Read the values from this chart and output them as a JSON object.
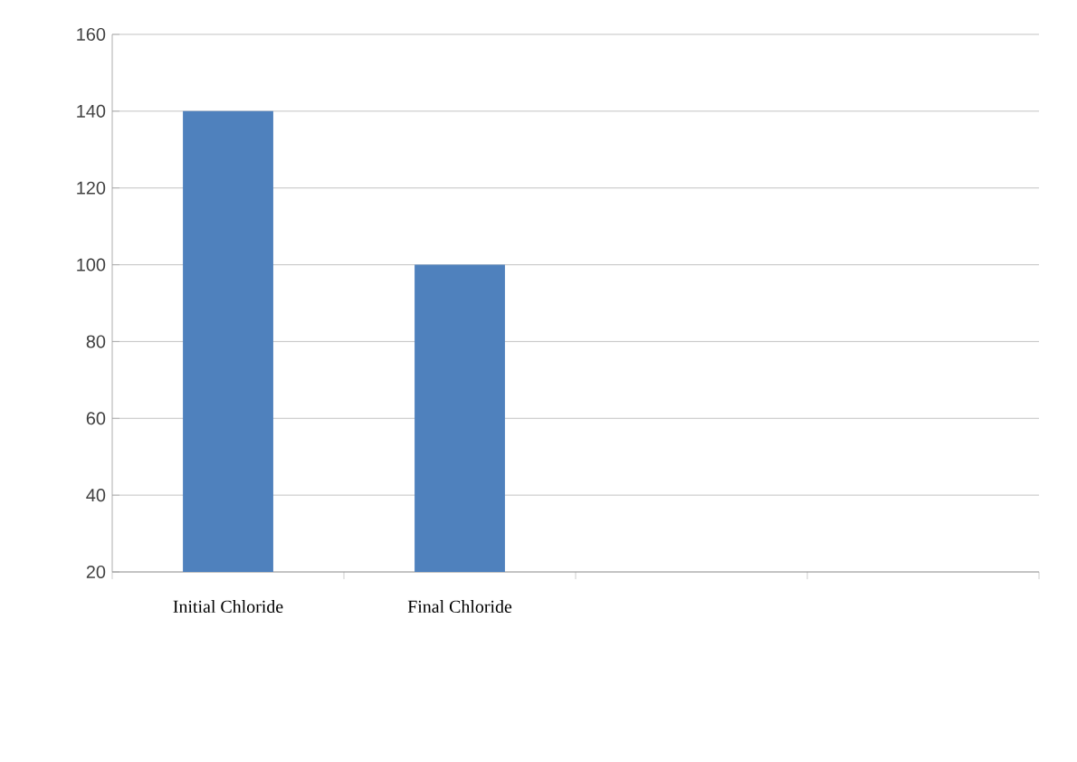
{
  "chart_data": {
    "type": "bar",
    "categories": [
      "Initial Chloride",
      "Final Chloride",
      null,
      null
    ],
    "values": [
      140,
      100,
      null,
      null
    ],
    "color": "#4f81bd",
    "ylim": [
      20,
      160
    ],
    "yticks": [
      20,
      40,
      60,
      80,
      100,
      120,
      140,
      160
    ],
    "grid": "y"
  }
}
